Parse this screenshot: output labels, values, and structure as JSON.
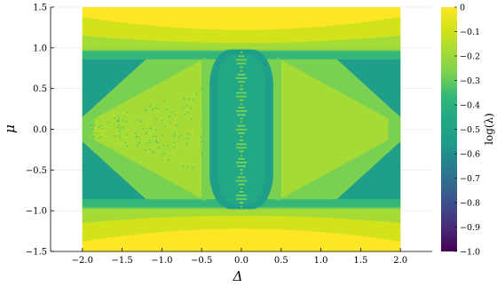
{
  "chart_data": {
    "type": "heatmap",
    "title": "",
    "xlabel": "Δ",
    "ylabel": "μ",
    "xlim": [
      -2.4,
      2.4
    ],
    "ylim": [
      -1.5,
      1.5
    ],
    "x_ticks": [
      -2.0,
      -1.5,
      -1.0,
      -0.5,
      0.0,
      0.5,
      1.0,
      1.5,
      2.0
    ],
    "x_tick_labels": [
      "−2.0",
      "−1.5",
      "−1.0",
      "−0.5",
      "0.0",
      "0.5",
      "1.0",
      "1.5",
      "2.0"
    ],
    "y_ticks": [
      -1.5,
      -1.0,
      -0.5,
      0.0,
      0.5,
      1.0,
      1.5
    ],
    "y_tick_labels": [
      "−1.5",
      "−1.0",
      "−0.5",
      "0.0",
      "0.5",
      "1.0",
      "1.5"
    ],
    "data_x_range": [
      -2.0,
      2.0
    ],
    "data_y_range": [
      -1.5,
      1.5
    ],
    "grid": true,
    "colorbar": {
      "label": "log(λ)",
      "min": -1.0,
      "max": 0.0,
      "ticks": [
        0,
        -0.1,
        -0.2,
        -0.3,
        -0.4,
        -0.5,
        -0.6,
        -0.7,
        -0.8,
        -0.9,
        -1.0
      ],
      "tick_labels": [
        "0",
        "−0.1",
        "−0.2",
        "−0.3",
        "−0.4",
        "−0.5",
        "−0.6",
        "−0.7",
        "−0.8",
        "−0.9",
        "−1.0"
      ],
      "colormap": "viridis"
    },
    "regions": [
      {
        "name": "outer band |μ|>1.4",
        "log_lambda": -0.02
      },
      {
        "name": "band 1.2<|μ|<1.4",
        "log_lambda": -0.1
      },
      {
        "name": "band 1.0<|μ|<1.2",
        "log_lambda": -0.15
      },
      {
        "name": "ring near |μ|=1",
        "log_lambda": -0.25
      },
      {
        "name": "outer wedges",
        "log_lambda": -0.35
      },
      {
        "name": "inner wedges",
        "log_lambda": -0.25
      },
      {
        "name": "central column |Δ|<0.4",
        "log_lambda": -0.4
      },
      {
        "name": "left lens interior",
        "log_lambda": -0.25
      }
    ]
  },
  "colors": {
    "c0": "#fde725",
    "c1": "#d2e21b",
    "c2": "#a5db36",
    "c3": "#7ad151",
    "c4": "#35b779",
    "c5": "#22a884",
    "c6": "#1f9e89",
    "c7": "#26828e",
    "c8": "#31688e",
    "c9": "#3e4989",
    "c10": "#482878",
    "c11": "#440154"
  }
}
